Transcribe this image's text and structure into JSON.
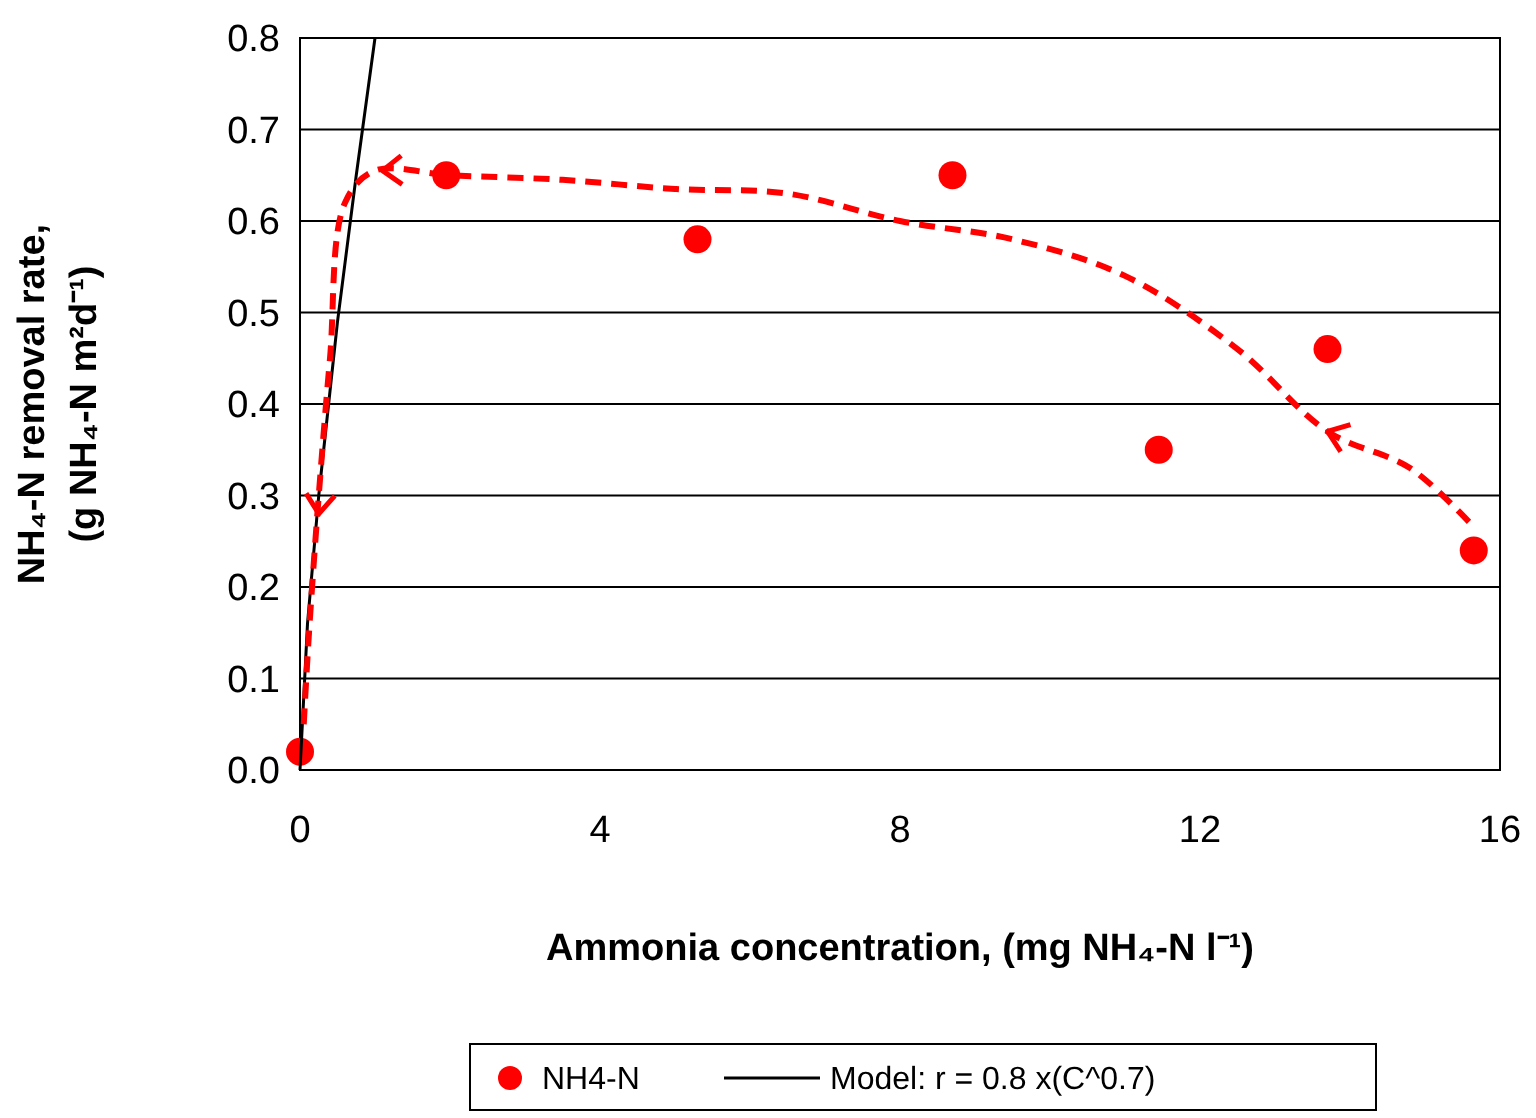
{
  "chart_data": {
    "type": "scatter",
    "xlabel": "Ammonia concentration, (mg NH₄-N l⁻¹)",
    "ylabel": "NH₄-N removal rate,\n(g NH₄-N m²d⁻¹)",
    "xlim": [
      0,
      16
    ],
    "xticks": [
      0,
      4,
      8,
      12,
      16
    ],
    "ylim": [
      0,
      0.8
    ],
    "yticks": [
      {
        "value": 0,
        "label": "0.0"
      },
      {
        "value": 0.1,
        "label": "0.1"
      },
      {
        "value": 0.2,
        "label": "0.2"
      },
      {
        "value": 0.3,
        "label": "0.3"
      },
      {
        "value": 0.4,
        "label": "0.4"
      },
      {
        "value": 0.5,
        "label": "0.5"
      },
      {
        "value": 0.6,
        "label": "0.6"
      },
      {
        "value": 0.7,
        "label": "0.7"
      },
      {
        "value": 0.8,
        "label": "0.8"
      }
    ],
    "grid": "y",
    "legend": "bottom",
    "series": [
      {
        "name": "NH4-N",
        "type": "scatter",
        "marker": "circle",
        "color": "#ff0000",
        "x": [
          0,
          1.95,
          5.3,
          8.7,
          11.45,
          13.7,
          15.65
        ],
        "values": [
          0.02,
          0.65,
          0.58,
          0.65,
          0.35,
          0.46,
          0.24
        ]
      },
      {
        "name": "Model: r = 0.8 x(C^0.7)",
        "type": "line",
        "marker": "none",
        "line_style": "solid",
        "color": "#000000",
        "x": [
          0,
          0.1,
          0.25,
          0.5,
          0.75,
          1.0
        ],
        "values": [
          0,
          0.16,
          0.3,
          0.49,
          0.65,
          0.8
        ]
      },
      {
        "type": "line",
        "marker": "none",
        "line_style": "dashed",
        "color": "#ff0000",
        "x": [
          0.05,
          0.12,
          0.25,
          0.4,
          0.6,
          1.0,
          2.0,
          3.5,
          5.0,
          6.5,
          8.0,
          9.5,
          11.0,
          12.5,
          13.7,
          14.8,
          15.6
        ],
        "values": [
          0.05,
          0.15,
          0.3,
          0.45,
          0.62,
          0.655,
          0.65,
          0.645,
          0.635,
          0.63,
          0.6,
          0.58,
          0.54,
          0.46,
          0.37,
          0.33,
          0.27
        ]
      }
    ]
  }
}
